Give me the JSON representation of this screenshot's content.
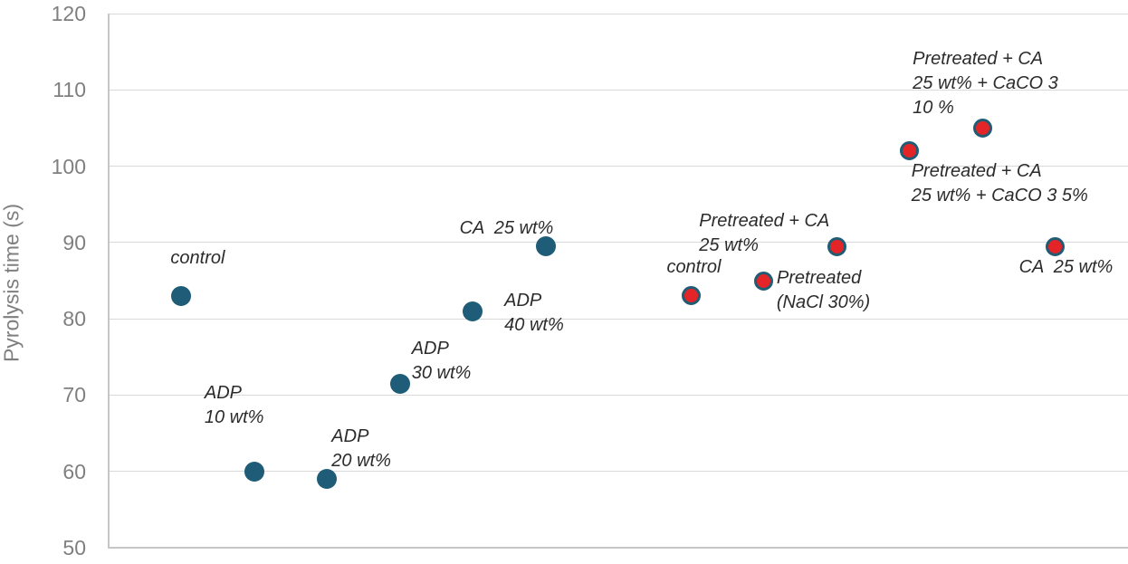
{
  "chart_data": {
    "type": "scatter",
    "title": "",
    "xlabel": "",
    "ylabel": "Pyrolysis time (s)",
    "ylim": [
      50,
      120
    ],
    "yticks": [
      50,
      60,
      70,
      80,
      90,
      100,
      110,
      120
    ],
    "grid": "horizontal-only",
    "legend_position": "none",
    "x_axis_labels": "none",
    "colors": {
      "gridline": "#d9d9d9",
      "axis_line": "#c6c6c6",
      "tick_text": "#7f7f7f",
      "label_text": "#2b2b2b",
      "blue_marker": "#1f5c77",
      "red_marker_fill": "#e42528",
      "red_marker_border": "#215c75"
    },
    "series": [
      {
        "name": "untreated-samples-blue",
        "marker_fill": "#1f5c77",
        "marker_border": "#1f5c77",
        "marker_size": 22,
        "marker_border_width": 0,
        "points": [
          {
            "x": 1,
            "y": 83,
            "label_lines": [
              "control"
            ],
            "label_dx": -12,
            "label_dy": -55
          },
          {
            "x": 2,
            "y": 60,
            "label_lines": [
              "ADP",
              "10 wt%"
            ],
            "label_dx": -55,
            "label_dy": -100
          },
          {
            "x": 3,
            "y": 59,
            "label_lines": [
              "ADP",
              "20 wt%"
            ],
            "label_dx": 5,
            "label_dy": -60
          },
          {
            "x": 4,
            "y": 71.5,
            "label_lines": [
              "ADP",
              "30 wt%"
            ],
            "label_dx": 13,
            "label_dy": -52
          },
          {
            "x": 5,
            "y": 81,
            "label_lines": [
              "ADP",
              "40 wt%"
            ],
            "label_dx": 35,
            "label_dy": -25
          },
          {
            "x": 6,
            "y": 89.5,
            "label_lines": [
              "CA  25 wt%"
            ],
            "label_dx": -95,
            "label_dy": -33
          }
        ]
      },
      {
        "name": "pretreated-samples-red",
        "marker_fill": "#e42528",
        "marker_border": "#215c75",
        "marker_size": 21,
        "marker_border_width": 3,
        "points": [
          {
            "x": 8,
            "y": 83,
            "label_lines": [
              "control"
            ],
            "label_dx": -27,
            "label_dy": -45
          },
          {
            "x": 9,
            "y": 85,
            "label_lines": [
              "Pretreated",
              "(NaCl 30%)"
            ],
            "label_dx": 14,
            "label_dy": -16
          },
          {
            "x": 10,
            "y": 89.5,
            "label_lines": [
              "Pretreated + CA",
              "25 wt%"
            ],
            "label_dx": -152,
            "label_dy": -41
          },
          {
            "x": 11,
            "y": 102,
            "label_lines": [
              "Pretreated + CA",
              "25 wt% + CaCO 3 5%"
            ],
            "label_dx": 2,
            "label_dy": 9
          },
          {
            "x": 12,
            "y": 105,
            "label_lines": [
              "Pretreated + CA",
              "25 wt% + CaCO 3",
              "10 %"
            ],
            "label_dx": -77,
            "label_dy": -89
          },
          {
            "x": 13,
            "y": 89.5,
            "label_lines": [
              "CA  25 wt%"
            ],
            "label_dx": -40,
            "label_dy": 10
          }
        ]
      }
    ]
  }
}
